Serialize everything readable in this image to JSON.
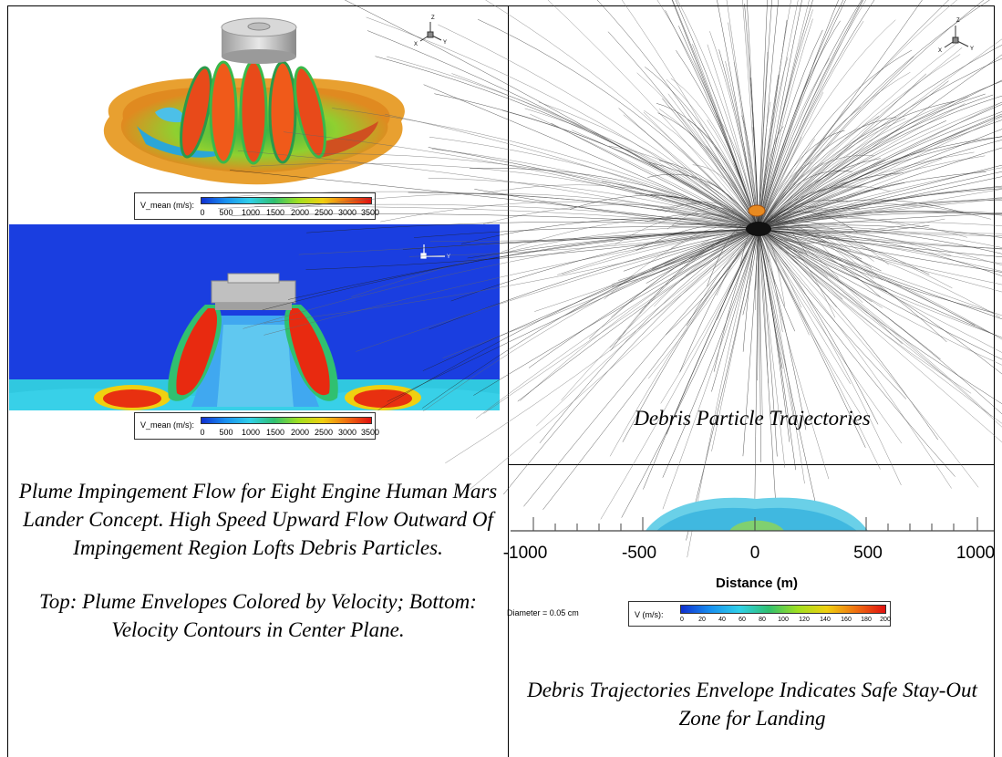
{
  "left_panel": {
    "top_colorbar": {
      "label": "V_mean (m/s):",
      "ticks": [
        "0",
        "500",
        "1000",
        "1500",
        "2000",
        "2500",
        "3000",
        "3500"
      ]
    },
    "bottom_colorbar": {
      "label": "V_mean (m/s):",
      "ticks": [
        "0",
        "500",
        "1000",
        "1500",
        "2000",
        "2500",
        "3000",
        "3500"
      ]
    },
    "axis_labels": {
      "z": "Z",
      "x": "X",
      "y": "Y"
    },
    "caption_line1": "Plume Impingement Flow for Eight Engine Human Mars Lander Concept. High Speed Upward Flow Outward Of Impingement Region Lofts Debris Particles.",
    "caption_line2": "Top: Plume Envelopes Colored by Velocity; Bottom: Velocity Contours in Center Plane."
  },
  "right_top": {
    "axis_labels": {
      "z": "Z",
      "x": "X",
      "y": "Y"
    },
    "caption": "Debris Particle Trajectories"
  },
  "right_bottom": {
    "x_ticks": [
      "-1000",
      "-500",
      "0",
      "500",
      "1000"
    ],
    "x_axis_label": "Distance (m)",
    "diameter_label": "Diameter = 0.05 cm",
    "colorbar": {
      "label": "V (m/s):",
      "ticks": [
        "0",
        "20",
        "40",
        "60",
        "80",
        "100",
        "120",
        "140",
        "160",
        "180",
        "200"
      ]
    },
    "caption": "Debris Trajectories Envelope Indicates Safe Stay-Out Zone for Landing"
  }
}
